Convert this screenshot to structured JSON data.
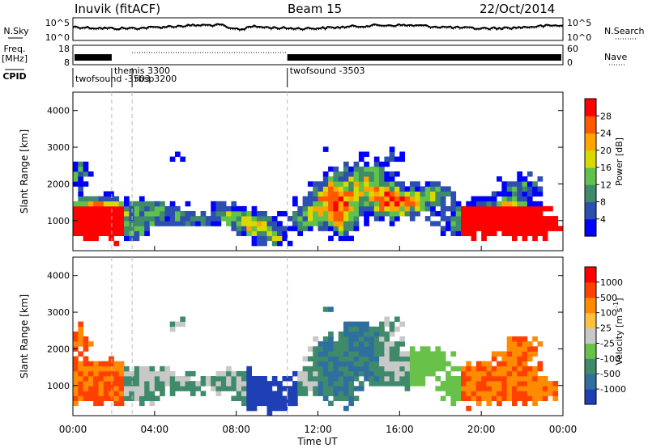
{
  "header": {
    "station": "Inuvik (fitACF)",
    "beam": "Beam 15",
    "date": "22/Oct/2014"
  },
  "sidebar_left": {
    "nsky_label": "N.Sky",
    "freq_label": "Freq.",
    "freq_unit": "[MHz]",
    "cpid_label": "CPID"
  },
  "sidebar_right": {
    "nsearch_label": "N.Search",
    "nave_label": "Nave"
  },
  "noise_panel": {
    "y_ticks_left": [
      "10^5",
      "10^0"
    ],
    "y_ticks_right": [
      "10^5",
      "10^0"
    ]
  },
  "freq_panel": {
    "y_ticks_left": [
      "18",
      "8"
    ],
    "y_ticks_right": [
      "60",
      "0"
    ]
  },
  "cpid_panel": {
    "segments": [
      {
        "label": "twofsound -3503",
        "start_hour": 0.0
      },
      {
        "label": "themis 3300",
        "start_hour": 1.9
      },
      {
        "label": "rbsp3200",
        "start_hour": 2.9
      },
      {
        "label": "twofsound -3503",
        "start_hour": 10.5
      }
    ]
  },
  "chart_data": [
    {
      "type": "heatmap",
      "name": "power",
      "ylabel": "Slant Range [km]",
      "xlabel": "",
      "xlim": [
        0,
        24
      ],
      "ylim": [
        180,
        4500
      ],
      "y_ticks": [
        "1000",
        "2000",
        "3000",
        "4000"
      ],
      "x_ticks": [
        "00:00",
        "04:00",
        "08:00",
        "12:00",
        "16:00",
        "20:00",
        "00:00"
      ],
      "colorbar": {
        "label": "Power [dB]",
        "ticks": [
          "4",
          "8",
          "12",
          "16",
          "20",
          "24",
          "28"
        ],
        "colors": [
          "#0000ff",
          "#2d4fb0",
          "#3e8a6a",
          "#5fc24a",
          "#d9d900",
          "#ffa500",
          "#ff5a00",
          "#ff0000"
        ]
      }
    },
    {
      "type": "heatmap",
      "name": "velocity",
      "ylabel": "Slant Range [km]",
      "xlabel": "Time UT",
      "xlim": [
        0,
        24
      ],
      "ylim": [
        180,
        4500
      ],
      "y_ticks": [
        "1000",
        "2000",
        "3000",
        "4000"
      ],
      "x_ticks": [
        "00:00",
        "04:00",
        "08:00",
        "12:00",
        "16:00",
        "20:00",
        "00:00"
      ],
      "colorbar": {
        "label": "Velocity [m s",
        "label_sup": "-1",
        "label_close": "]",
        "ticks": [
          "1000",
          "500",
          "100",
          "25",
          "-25",
          "-100",
          "-500",
          "-1000"
        ],
        "colors": [
          "#1f3fb5",
          "#2f6fa0",
          "#3e8a6a",
          "#68c24a",
          "#c8c8c8",
          "#ffc040",
          "#ff8c00",
          "#ff4000",
          "#ff0000"
        ]
      }
    }
  ]
}
